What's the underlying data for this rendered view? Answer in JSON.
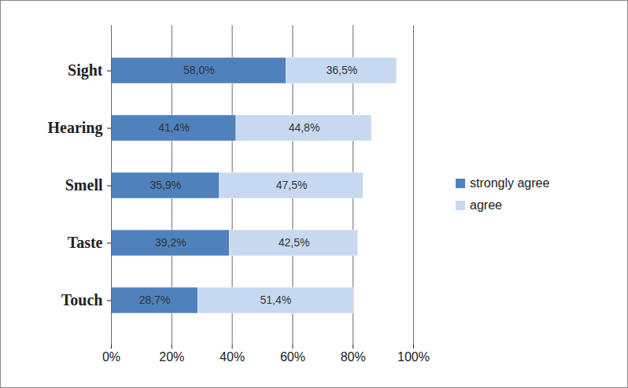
{
  "chart_data": {
    "type": "bar",
    "orientation": "horizontal",
    "stacked": true,
    "data_labels": true,
    "grid": true,
    "legend": "right",
    "categories": [
      "Sight",
      "Hearing",
      "Smell",
      "Taste",
      "Touch"
    ],
    "series": [
      {
        "name": "strongly agree",
        "color": "#4f81bd",
        "values": [
          58.0,
          41.4,
          35.9,
          39.2,
          28.7
        ],
        "value_labels": [
          "58,0%",
          "41,4%",
          "35,9%",
          "39,2%",
          "28,7%"
        ]
      },
      {
        "name": "agree",
        "color": "#c6d9f1",
        "values": [
          36.5,
          44.8,
          47.5,
          42.5,
          51.4
        ],
        "value_labels": [
          "36,5%",
          "44,8%",
          "47,5%",
          "42,5%",
          "51,4%"
        ]
      }
    ],
    "xlim": [
      0,
      100
    ],
    "xticks": [
      {
        "value": 0,
        "label": "0%"
      },
      {
        "value": 20,
        "label": "20%"
      },
      {
        "value": 40,
        "label": "40%"
      },
      {
        "value": 60,
        "label": "60%"
      },
      {
        "value": 80,
        "label": "80%"
      },
      {
        "value": 100,
        "label": "100%"
      }
    ]
  }
}
